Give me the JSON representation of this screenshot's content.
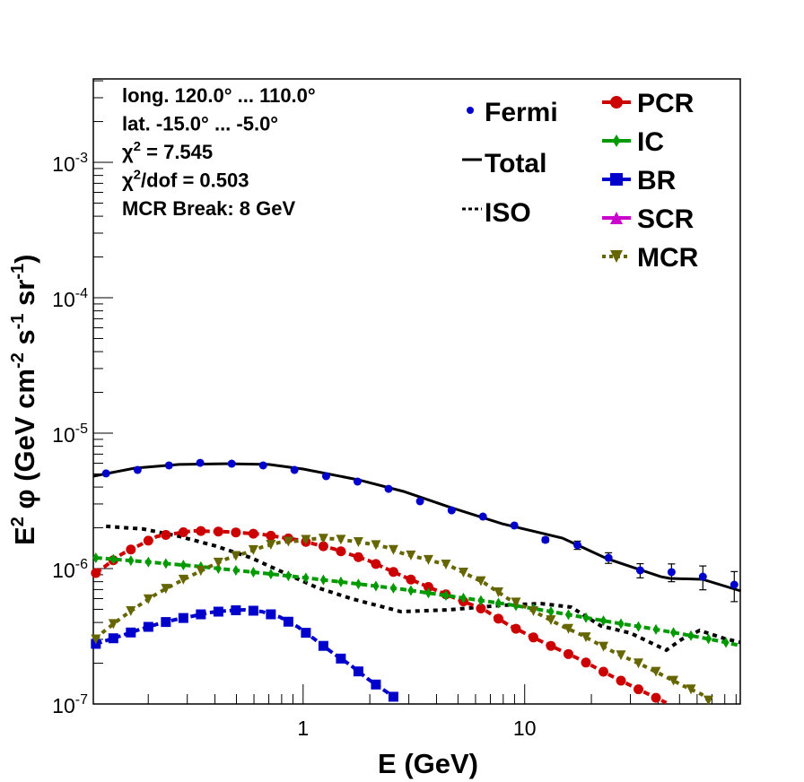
{
  "chart_data": {
    "type": "scatter",
    "title": "",
    "xlabel": "E (GeV)",
    "ylabel": {
      "pre": "E",
      "sup": "2",
      "mid": " φ (GeV cm",
      "s1": "-2",
      "m2": " s",
      "s2": "-1",
      "m3": " sr",
      "s3": "-1",
      "post": ")"
    },
    "x_scale": "log",
    "y_scale": "log",
    "xlim": [
      0.113,
      94
    ],
    "ylim": [
      1e-07,
      0.00413
    ],
    "x_ticks": [
      {
        "value": 1,
        "label": "1"
      },
      {
        "value": 10,
        "label": "10"
      }
    ],
    "y_ticks": [
      {
        "value": 1e-07,
        "base": "10",
        "exp": "-7"
      },
      {
        "value": 1e-06,
        "base": "10",
        "exp": "-6"
      },
      {
        "value": 1e-05,
        "base": "10",
        "exp": "-5"
      },
      {
        "value": 0.0001,
        "base": "10",
        "exp": "-4"
      },
      {
        "value": 0.001,
        "base": "10",
        "exp": "-3"
      }
    ],
    "stats_box": [
      {
        "pre": "long. 120.0° ... 110.0°",
        "sup": "",
        "post": ""
      },
      {
        "pre": "lat. -15.0° ... -5.0°",
        "sup": "",
        "post": ""
      },
      {
        "pre": "χ",
        "sup": "2",
        "post": " = 7.545"
      },
      {
        "pre": "χ",
        "sup": "2",
        "post": "/dof = 0.503"
      },
      {
        "pre": "MCR Break:  8 GeV",
        "sup": "",
        "post": ""
      }
    ],
    "legend_left": [
      {
        "label": "Fermi",
        "key": "fermi"
      },
      {
        "label": "Total",
        "key": "total"
      },
      {
        "label": "ISO",
        "key": "iso"
      }
    ],
    "legend_right": [
      {
        "label": "PCR",
        "key": "pcr"
      },
      {
        "label": "IC",
        "key": "ic"
      },
      {
        "label": "BR",
        "key": "br"
      },
      {
        "label": "SCR",
        "key": "scr"
      },
      {
        "label": "MCR",
        "key": "mcr"
      }
    ],
    "colors": {
      "fermi": "#0000cc",
      "total": "#000000",
      "iso": "#000000",
      "pcr": "#cc0000",
      "ic": "#009900",
      "br": "#0000cc",
      "scr": "#cc00cc",
      "mcr": "#666600"
    },
    "fermi": {
      "E": [
        0.129,
        0.179,
        0.248,
        0.343,
        0.476,
        0.66,
        0.914,
        1.27,
        1.76,
        2.43,
        3.37,
        4.68,
        6.48,
        8.98,
        12.4,
        17.3,
        23.9,
        33.2,
        46.0,
        63.7,
        88.3
      ],
      "phi": [
        5.04e-06,
        5.35e-06,
        5.78e-06,
        6.04e-06,
        5.95e-06,
        5.78e-06,
        5.35e-06,
        4.81e-06,
        4.39e-06,
        3.88e-06,
        3.14e-06,
        2.69e-06,
        2.42e-06,
        2.08e-06,
        1.63e-06,
        1.49e-06,
        1.2e-06,
        9.7e-07,
        9.41e-07,
        8.71e-07,
        7.6e-07
      ],
      "rel_err": [
        0.02,
        0.02,
        0.02,
        0.02,
        0.02,
        0.02,
        0.02,
        0.02,
        0.02,
        0.02,
        0.02,
        0.02,
        0.02,
        0.03,
        0.04,
        0.07,
        0.09,
        0.12,
        0.15,
        0.2,
        0.25
      ]
    },
    "series": [
      {
        "name": "Total",
        "key": "total",
        "style": "solid",
        "E": [
          0.113,
          0.174,
          0.276,
          0.44,
          0.7,
          1.0,
          1.78,
          2.84,
          4.53,
          7.92,
          14.8,
          23.6,
          41.2,
          45.3,
          63.4,
          94.6
        ],
        "phi": [
          4.81e-06,
          5.52e-06,
          5.87e-06,
          5.95e-06,
          5.87e-06,
          5.43e-06,
          4.52e-06,
          3.71e-06,
          2.86e-06,
          2.14e-06,
          1.68e-06,
          1.18e-06,
          8.71e-07,
          8.45e-07,
          8.33e-07,
          6.83e-07
        ]
      },
      {
        "name": "ISO",
        "key": "iso",
        "style": "dotted",
        "E": [
          0.129,
          0.19,
          0.276,
          0.401,
          0.582,
          0.792,
          1.15,
          1.67,
          2.76,
          4.53,
          7.92,
          11.8,
          16.2,
          22.1,
          30.0,
          43.6,
          51.1,
          61.6,
          80.0,
          94.0
        ],
        "phi": [
          2.05e-06,
          1.96e-06,
          1.73e-06,
          1.47e-06,
          1.2e-06,
          9.55e-07,
          7.26e-07,
          5.96e-07,
          4.81e-07,
          4.96e-07,
          5.35e-07,
          5.52e-07,
          5.19e-07,
          3.77e-07,
          3.34e-07,
          2.5e-07,
          3e-07,
          3.49e-07,
          3.04e-07,
          2.85e-07
        ]
      },
      {
        "name": "PCR",
        "key": "pcr",
        "style": "dashed",
        "marker": "circle",
        "E": [
          0.116,
          0.152,
          0.219,
          0.318,
          0.453,
          0.651,
          0.946,
          1.37,
          1.96,
          2.79,
          4.53,
          6.57,
          8.45,
          12.3,
          17.7,
          25.2,
          36.2,
          43.6
        ],
        "phi": [
          9.27e-07,
          1.28e-06,
          1.73e-06,
          1.9e-06,
          1.87e-06,
          1.79e-06,
          1.63e-06,
          1.4e-06,
          1.15e-06,
          8.85e-07,
          6.33e-07,
          4.96e-07,
          3.83e-07,
          2.82e-07,
          2.14e-07,
          1.58e-07,
          1.18e-07,
          1.02e-07
        ]
      },
      {
        "name": "IC",
        "key": "ic",
        "style": "dashed",
        "marker": "diamond",
        "E": [
          0.116,
          0.185,
          0.312,
          0.546,
          0.929,
          1.62,
          2.79,
          8.45,
          11.8,
          17.2,
          24.9,
          35.2,
          51.1,
          69.5,
          94.0
        ],
        "phi": [
          1.2e-06,
          1.13e-06,
          1.05e-06,
          9.55e-07,
          8.71e-07,
          7.83e-07,
          7.04e-07,
          5.43e-07,
          4.96e-07,
          4.46e-07,
          4.01e-07,
          3.66e-07,
          3.29e-07,
          3e-07,
          2.7e-07
        ]
      },
      {
        "name": "BR",
        "key": "br",
        "style": "dashed",
        "marker": "square",
        "E": [
          0.116,
          0.151,
          0.183,
          0.219,
          0.264,
          0.318,
          0.376,
          0.453,
          0.546,
          0.651,
          0.785,
          0.946,
          1.13,
          1.36,
          1.64,
          1.96,
          2.36,
          2.66
        ],
        "phi": [
          2.78e-07,
          3.19e-07,
          3.55e-07,
          3.88e-07,
          4.19e-07,
          4.46e-07,
          4.73e-07,
          4.88e-07,
          4.96e-07,
          4.81e-07,
          4.39e-07,
          3.71e-07,
          3e-07,
          2.38e-07,
          1.93e-07,
          1.53e-07,
          1.24e-07,
          1.08e-07
        ]
      },
      {
        "name": "MCR",
        "key": "mcr",
        "style": "dotted",
        "marker": "triangle-down",
        "E": [
          0.116,
          0.125,
          0.151,
          0.182,
          0.219,
          0.264,
          0.318,
          0.376,
          0.453,
          0.546,
          0.651,
          0.785,
          0.946,
          1.13,
          1.36,
          1.64,
          1.96,
          2.36,
          2.79,
          4.53,
          6.57,
          8.45,
          10.1,
          12.3,
          14.7,
          17.7,
          21.1,
          25.2,
          30.3,
          36.2,
          43.6,
          52.1,
          62.8,
          67.6
        ],
        "phi": [
          3e-07,
          3.39e-07,
          4.32e-07,
          5.35e-07,
          6.53e-07,
          7.71e-07,
          8.99e-07,
          1.03e-06,
          1.18e-06,
          1.3e-06,
          1.44e-06,
          1.56e-06,
          1.6e-06,
          1.66e-06,
          1.66e-06,
          1.6e-06,
          1.53e-06,
          1.44e-06,
          1.3e-06,
          1.06e-06,
          7.83e-07,
          5.96e-07,
          5.19e-07,
          4.39e-07,
          3.77e-07,
          3.29e-07,
          2.82e-07,
          2.42e-07,
          2.11e-07,
          1.84e-07,
          1.58e-07,
          1.36e-07,
          1.18e-07,
          1.06e-07
        ]
      }
    ],
    "grid": false,
    "legend_placement": "top-right"
  }
}
